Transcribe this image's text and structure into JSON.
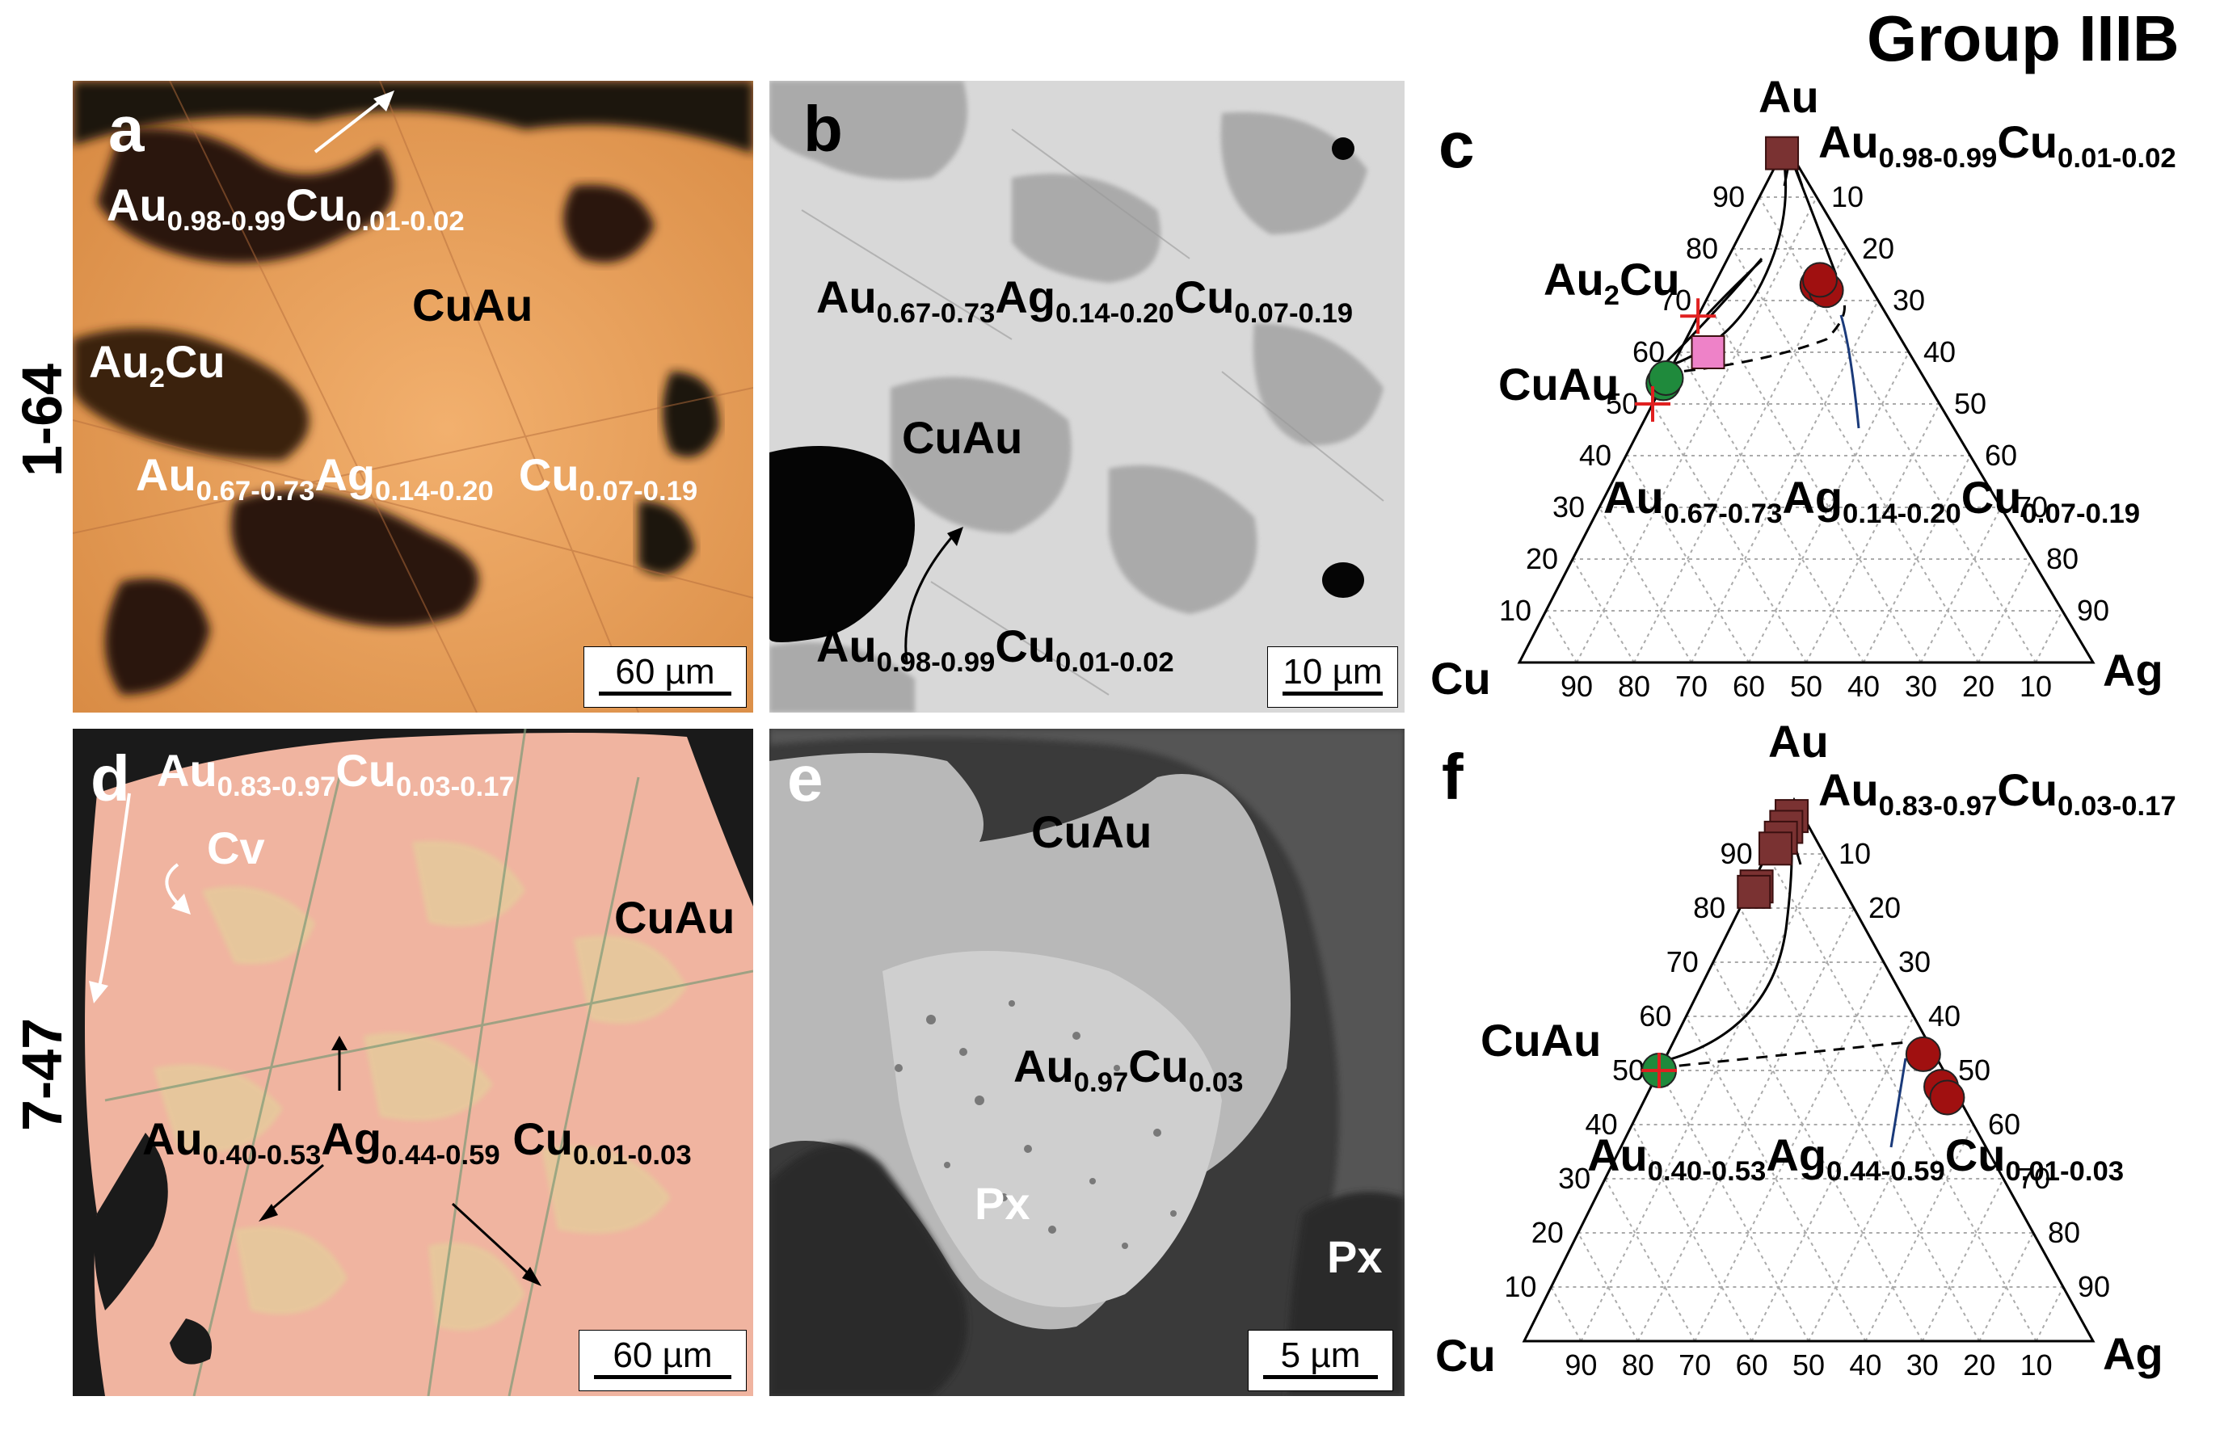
{
  "group_title": "Group IIIB",
  "rows": {
    "top": "1-64",
    "bottom": "7-47"
  },
  "panels": {
    "a": {
      "letter": "a",
      "scale": "60 µm",
      "labels": {
        "au_cu": {
          "main1": "Au",
          "sub1": "0.98-0.99",
          "main2": "Cu",
          "sub2": "0.01-0.02"
        },
        "cuau": "CuAu",
        "au2cu": {
          "main1": "Au",
          "sub1": "2",
          "main2": "Cu"
        },
        "auagcu": {
          "m1": "Au",
          "s1": "0.67-0.73",
          "m2": "Ag",
          "s2": "0.14-0.20",
          "m3": "Cu",
          "s3": "0.07-0.19"
        }
      }
    },
    "b": {
      "letter": "b",
      "scale": "10 µm",
      "labels": {
        "auagcu": {
          "m1": "Au",
          "s1": "0.67-0.73",
          "m2": "Ag",
          "s2": "0.14-0.20",
          "m3": "Cu",
          "s3": "0.07-0.19"
        },
        "cuau": "CuAu",
        "au_cu": {
          "main1": "Au",
          "sub1": "0.98-0.99",
          "main2": "Cu",
          "sub2": "0.01-0.02"
        }
      }
    },
    "c": {
      "letter": "c",
      "vertices": {
        "top": "Au",
        "left": "Cu",
        "right": "Ag"
      },
      "left_ticks": [
        "90",
        "80",
        "70",
        "60",
        "50",
        "40",
        "30",
        "20",
        "10"
      ],
      "right_ticks": [
        "10",
        "20",
        "30",
        "40",
        "50",
        "60",
        "70",
        "80",
        "90"
      ],
      "bottom_ticks": [
        "90",
        "80",
        "70",
        "60",
        "50",
        "40",
        "30",
        "20",
        "10"
      ],
      "labels": {
        "au_cu": {
          "main1": "Au",
          "sub1": "0.98-0.99",
          "main2": "Cu",
          "sub2": "0.01-0.02"
        },
        "au2cu": {
          "main1": "Au",
          "sub1": "2",
          "main2": "Cu"
        },
        "cuau": "CuAu",
        "auagcu": {
          "m1": "Au",
          "s1": "0.67-0.73",
          "m2": "Ag",
          "s2": "0.14-0.20",
          "m3": "Cu",
          "s3": "0.07-0.19"
        }
      }
    },
    "d": {
      "letter": "d",
      "scale": "60 µm",
      "labels": {
        "au_cu": {
          "main1": "Au",
          "sub1": "0.83-0.97",
          "main2": "Cu",
          "sub2": "0.03-0.17"
        },
        "cv": "Cv",
        "cuau": "CuAu",
        "auagcu": {
          "m1": "Au",
          "s1": "0.40-0.53",
          "m2": "Ag",
          "s2": "0.44-0.59",
          "m3": "Cu",
          "s3": "0.01-0.03"
        }
      }
    },
    "e": {
      "letter": "e",
      "scale": "5 µm",
      "labels": {
        "cuau": "CuAu",
        "au_cu": {
          "main1": "Au",
          "sub1": "0.97",
          "main2": "Cu",
          "sub2": "0.03"
        },
        "px1": "Px",
        "px2": "Px"
      }
    },
    "f": {
      "letter": "f",
      "vertices": {
        "top": "Au",
        "left": "Cu",
        "right": "Ag"
      },
      "left_ticks": [
        "90",
        "80",
        "70",
        "60",
        "50",
        "40",
        "30",
        "20",
        "10"
      ],
      "right_ticks": [
        "10",
        "20",
        "30",
        "40",
        "50",
        "60",
        "70",
        "80",
        "90"
      ],
      "bottom_ticks": [
        "90",
        "80",
        "70",
        "60",
        "50",
        "40",
        "30",
        "20",
        "10"
      ],
      "labels": {
        "au_cu": {
          "main1": "Au",
          "sub1": "0.83-0.97",
          "main2": "Cu",
          "sub2": "0.03-0.17"
        },
        "cuau": "CuAu",
        "auagcu": {
          "m1": "Au",
          "s1": "0.40-0.53",
          "m2": "Ag",
          "s2": "0.44-0.59",
          "m3": "Cu",
          "s3": "0.01-0.03"
        }
      }
    }
  },
  "chart_data": [
    {
      "type": "scatter",
      "title": "",
      "panel": "c",
      "axes": [
        "Au",
        "Cu",
        "Ag"
      ],
      "ternary": true,
      "series": [
        {
          "marker": "square",
          "color": "#7a3232",
          "points": [
            {
              "Au": 98.5,
              "Cu": 1.5,
              "Ag": 0
            }
          ]
        },
        {
          "marker": "circle",
          "color": "#a01010",
          "points": [
            {
              "Au": 73,
              "Cu": 9,
              "Ag": 18
            },
            {
              "Au": 72,
              "Cu": 8,
              "Ag": 20
            },
            {
              "Au": 74,
              "Cu": 8,
              "Ag": 18
            }
          ]
        },
        {
          "marker": "circle",
          "color": "#1f8a3c",
          "points": [
            {
              "Au": 54,
              "Cu": 46,
              "Ag": 0
            },
            {
              "Au": 55,
              "Cu": 45,
              "Ag": 0
            }
          ]
        },
        {
          "marker": "square",
          "color": "#ee82c8",
          "points": [
            {
              "Au": 60,
              "Cu": 35,
              "Ag": 5
            }
          ]
        },
        {
          "marker": "cross",
          "color": "#e02020",
          "points": [
            {
              "Au": 67,
              "Cu": 33,
              "Ag": 0
            },
            {
              "Au": 50,
              "Cu": 50,
              "Ag": 0
            }
          ]
        }
      ]
    },
    {
      "type": "scatter",
      "title": "",
      "panel": "f",
      "axes": [
        "Au",
        "Cu",
        "Ag"
      ],
      "ternary": true,
      "series": [
        {
          "marker": "square",
          "color": "#7a3232",
          "points": [
            {
              "Au": 97,
              "Cu": 2,
              "Ag": 1
            },
            {
              "Au": 95,
              "Cu": 4,
              "Ag": 1
            },
            {
              "Au": 93,
              "Cu": 6,
              "Ag": 1
            },
            {
              "Au": 91,
              "Cu": 8,
              "Ag": 1
            },
            {
              "Au": 84,
              "Cu": 15,
              "Ag": 1
            },
            {
              "Au": 83,
              "Cu": 16,
              "Ag": 1
            }
          ]
        },
        {
          "marker": "circle",
          "color": "#a01010",
          "points": [
            {
              "Au": 53,
              "Cu": 2,
              "Ag": 45
            },
            {
              "Au": 47,
              "Cu": 2,
              "Ag": 51
            },
            {
              "Au": 45,
              "Cu": 2,
              "Ag": 53
            }
          ]
        },
        {
          "marker": "circle",
          "color": "#1f8a3c",
          "points": [
            {
              "Au": 50,
              "Cu": 50,
              "Ag": 0
            }
          ]
        },
        {
          "marker": "cross",
          "color": "#e02020",
          "points": [
            {
              "Au": 50,
              "Cu": 50,
              "Ag": 0
            }
          ]
        }
      ]
    }
  ]
}
